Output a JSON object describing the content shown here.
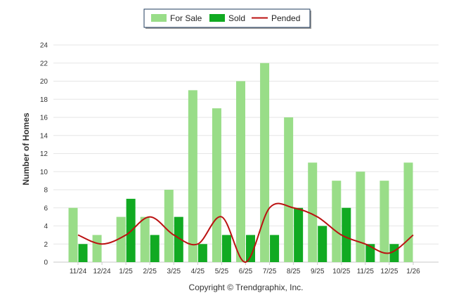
{
  "chart_data": {
    "type": "bar",
    "ylabel": "Number of Homes",
    "ylim": [
      0,
      24
    ],
    "yticks": [
      0,
      2,
      4,
      6,
      8,
      10,
      12,
      14,
      16,
      18,
      20,
      22,
      24
    ],
    "categories": [
      "11/24",
      "12/24",
      "1/25",
      "2/25",
      "3/25",
      "4/25",
      "5/25",
      "6/25",
      "7/25",
      "8/25",
      "9/25",
      "10/25",
      "11/25",
      "12/25",
      "1/26"
    ],
    "series": [
      {
        "name": "For Sale",
        "type": "bar",
        "color": "#99dd88",
        "values": [
          6,
          3,
          5,
          5,
          8,
          19,
          17,
          20,
          22,
          16,
          11,
          9,
          10,
          9,
          11
        ]
      },
      {
        "name": "Sold",
        "type": "bar",
        "color": "#11aa22",
        "values": [
          2,
          0,
          7,
          3,
          5,
          2,
          3,
          3,
          3,
          6,
          4,
          6,
          2,
          2,
          0
        ]
      },
      {
        "name": "Pended",
        "type": "line",
        "color": "#bb1111",
        "values": [
          3,
          2,
          3,
          5,
          3,
          2,
          5,
          0,
          6,
          6,
          5,
          3,
          2,
          1,
          3
        ]
      }
    ],
    "legend_position": "top-center",
    "grid": true
  },
  "footer": {
    "copyright": "Copyright © Trendgraphix, Inc."
  }
}
